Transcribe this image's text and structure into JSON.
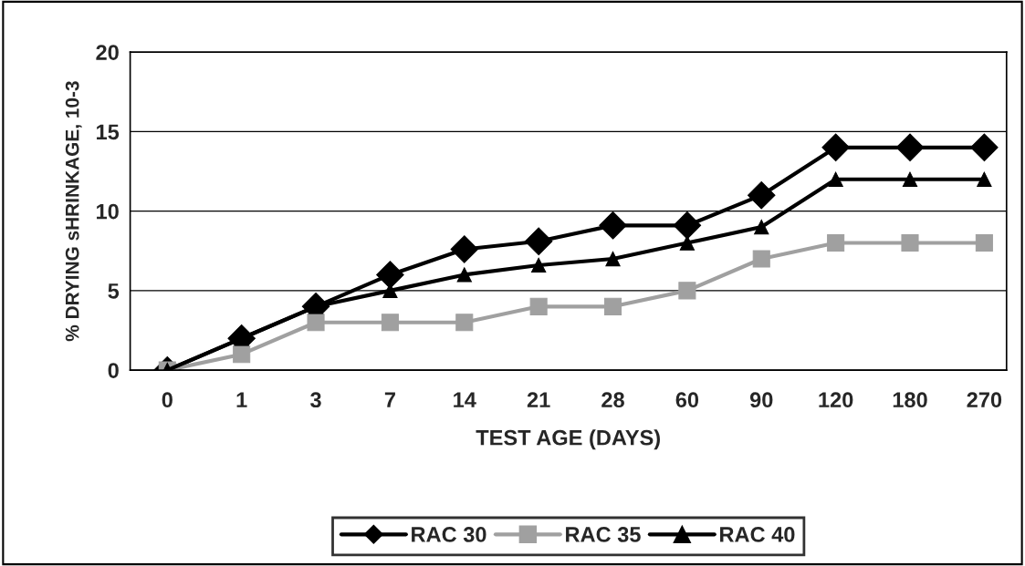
{
  "chart_data": {
    "type": "line",
    "xlabel": "TEST AGE (DAYS)",
    "ylabel": "% DRYING sHRINKAGE, 10-3",
    "categories": [
      "0",
      "1",
      "3",
      "7",
      "14",
      "21",
      "28",
      "60",
      "90",
      "120",
      "180",
      "270"
    ],
    "series": [
      {
        "name": "RAC 30",
        "color": "#000000",
        "marker": "diamond",
        "values": [
          0,
          2,
          4,
          6,
          7.6,
          8.1,
          9.1,
          9.1,
          11,
          14,
          14,
          14
        ]
      },
      {
        "name": "RAC 35",
        "color": "#a0a0a0",
        "marker": "square",
        "values": [
          0,
          1,
          3,
          3,
          3,
          4,
          4,
          5,
          7,
          8,
          8,
          8
        ]
      },
      {
        "name": "RAC 40",
        "color": "#000000",
        "marker": "triangle",
        "values": [
          0,
          2,
          4,
          5,
          6,
          6.6,
          7,
          8,
          9,
          12,
          12,
          12
        ]
      }
    ],
    "ylim": [
      0,
      20
    ],
    "yticks": [
      0,
      5,
      10,
      15,
      20
    ],
    "grid": "y",
    "legend": "bottom",
    "line_style": "solid"
  }
}
